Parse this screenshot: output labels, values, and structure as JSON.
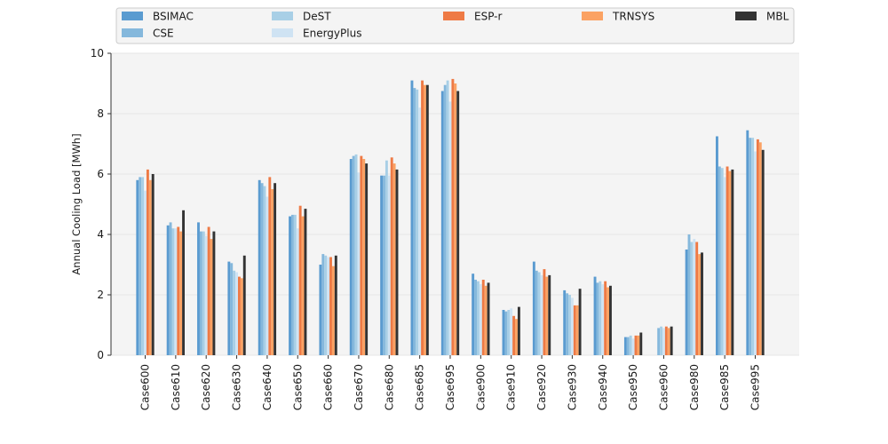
{
  "chart_data": {
    "type": "bar",
    "ylabel": "Annual Cooling Load [MWh]",
    "xlabel": "",
    "ylim": [
      0,
      10
    ],
    "yticks": [
      0,
      2,
      4,
      6,
      8,
      10
    ],
    "grid": true,
    "legend_position": "top",
    "categories": [
      "Case600",
      "Case610",
      "Case620",
      "Case630",
      "Case640",
      "Case650",
      "Case660",
      "Case670",
      "Case680",
      "Case685",
      "Case695",
      "Case900",
      "Case910",
      "Case920",
      "Case930",
      "Case940",
      "Case950",
      "Case960",
      "Case980",
      "Case985",
      "Case995"
    ],
    "series": [
      {
        "name": "BSIMAC",
        "color": "#5a9bd0",
        "values": [
          5.8,
          4.3,
          4.4,
          3.1,
          5.8,
          4.6,
          3.0,
          6.5,
          5.95,
          9.1,
          8.75,
          2.7,
          1.5,
          3.1,
          2.15,
          2.6,
          0.6,
          null,
          3.5,
          7.25,
          7.45
        ]
      },
      {
        "name": "CSE",
        "color": "#85b8dc",
        "values": [
          5.9,
          4.4,
          4.1,
          3.05,
          5.7,
          4.65,
          3.35,
          6.6,
          5.95,
          8.85,
          8.95,
          2.5,
          1.45,
          2.8,
          2.05,
          2.4,
          0.6,
          0.9,
          4.0,
          6.25,
          7.2
        ]
      },
      {
        "name": "DeST",
        "color": "#a8cfe6",
        "values": [
          5.9,
          4.2,
          4.1,
          2.8,
          5.6,
          4.65,
          3.3,
          6.65,
          6.45,
          8.8,
          9.1,
          2.45,
          1.5,
          2.75,
          2.0,
          2.45,
          0.65,
          0.95,
          3.75,
          6.2,
          7.2
        ]
      },
      {
        "name": "EnergyPlus",
        "color": "#cfe3f3",
        "values": [
          5.45,
          4.2,
          3.95,
          2.75,
          5.25,
          4.2,
          3.25,
          6.05,
          5.95,
          8.2,
          8.4,
          2.35,
          1.55,
          2.65,
          1.9,
          2.35,
          0.55,
          0.9,
          3.85,
          5.9,
          6.75
        ]
      },
      {
        "name": "ESP-r",
        "color": "#ee7a45",
        "values": [
          6.15,
          4.25,
          4.25,
          2.6,
          5.9,
          4.95,
          3.25,
          6.6,
          6.55,
          9.1,
          9.15,
          2.5,
          1.3,
          2.85,
          1.65,
          2.45,
          0.65,
          0.95,
          3.75,
          6.25,
          7.15
        ]
      },
      {
        "name": "TRNSYS",
        "color": "#fba263",
        "values": [
          5.8,
          4.1,
          3.85,
          2.55,
          5.5,
          4.6,
          2.95,
          6.5,
          6.35,
          8.95,
          9.0,
          2.3,
          1.2,
          2.6,
          1.65,
          2.25,
          0.65,
          0.9,
          3.35,
          6.1,
          7.05
        ]
      },
      {
        "name": "MBL",
        "color": "#333333",
        "values": [
          6.0,
          4.8,
          4.1,
          3.3,
          5.7,
          4.85,
          3.3,
          6.35,
          6.15,
          8.95,
          8.75,
          2.4,
          1.6,
          2.65,
          2.2,
          2.3,
          0.75,
          0.95,
          3.4,
          6.15,
          6.8
        ]
      }
    ]
  }
}
